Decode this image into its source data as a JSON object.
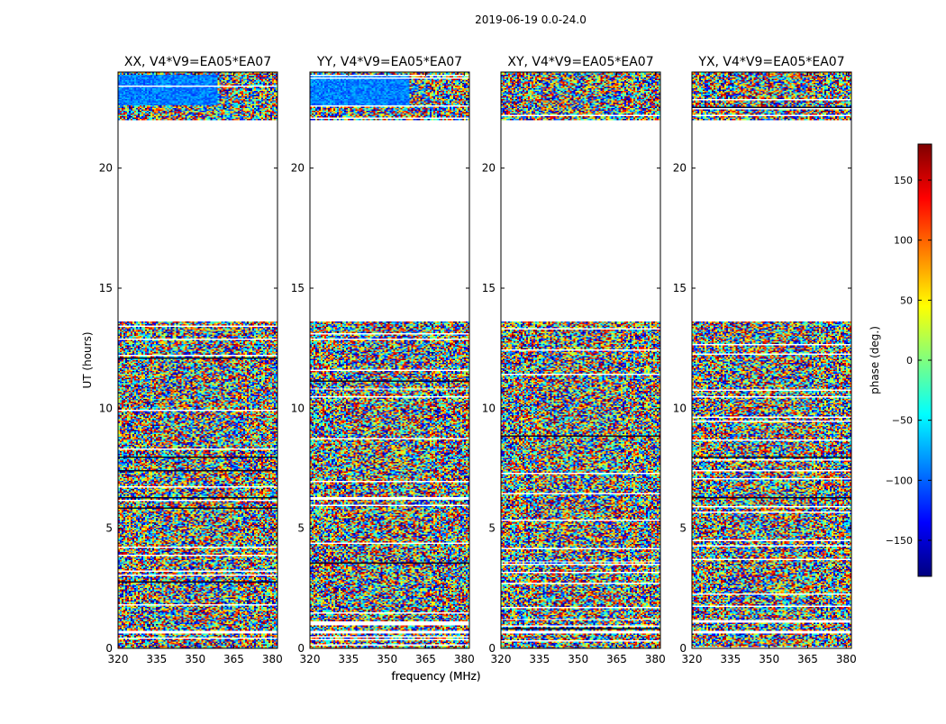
{
  "suptitle": "2019-06-19 0.0-24.0",
  "chart_data": [
    {
      "type": "heatmap",
      "title": "XX, V4*V9=EA05*EA07",
      "xlabel": "frequency (MHz)",
      "ylabel": "UT (hours)",
      "xlim": [
        320,
        382
      ],
      "ylim": [
        0,
        24
      ],
      "xticks": [
        "320",
        "335",
        "350",
        "365",
        "380"
      ],
      "yticks": [
        "0",
        "5",
        "10",
        "15",
        "20"
      ],
      "data_intervals_ut_hours": [
        [
          0,
          0.6
        ],
        [
          0.7,
          13.6
        ],
        [
          22.0,
          24.0
        ]
      ]
    },
    {
      "type": "heatmap",
      "title": "YY, V4*V9=EA05*EA07",
      "xlabel": "frequency (MHz)",
      "ylabel": "",
      "xlim": [
        320,
        382
      ],
      "ylim": [
        0,
        24
      ],
      "xticks": [
        "320",
        "335",
        "350",
        "365",
        "380"
      ],
      "yticks": [
        "0",
        "5",
        "10",
        "15",
        "20"
      ],
      "data_intervals_ut_hours": [
        [
          0,
          0.6
        ],
        [
          0.7,
          13.6
        ],
        [
          22.0,
          24.0
        ]
      ]
    },
    {
      "type": "heatmap",
      "title": "XY, V4*V9=EA05*EA07",
      "xlabel": "",
      "ylabel": "",
      "xlim": [
        320,
        382
      ],
      "ylim": [
        0,
        24
      ],
      "xticks": [
        "320",
        "335",
        "350",
        "365",
        "380"
      ],
      "yticks": [
        "0",
        "5",
        "10",
        "15",
        "20"
      ],
      "data_intervals_ut_hours": [
        [
          0,
          0.6
        ],
        [
          0.7,
          13.6
        ],
        [
          22.0,
          24.0
        ]
      ]
    },
    {
      "type": "heatmap",
      "title": "YX, V4*V9=EA05*EA07",
      "xlabel": "",
      "ylabel": "",
      "xlim": [
        320,
        382
      ],
      "ylim": [
        0,
        24
      ],
      "xticks": [
        "320",
        "335",
        "350",
        "365",
        "380"
      ],
      "yticks": [
        "0",
        "5",
        "10",
        "15",
        "20"
      ],
      "data_intervals_ut_hours": [
        [
          0,
          0.6
        ],
        [
          0.7,
          13.6
        ],
        [
          22.0,
          24.0
        ]
      ]
    }
  ],
  "colorbar": {
    "label": "phase (deg.)",
    "range": [
      -180,
      180
    ],
    "ticks": [
      "150",
      "100",
      "50",
      "0",
      "−50",
      "−100",
      "−150"
    ],
    "tick_values": [
      150,
      100,
      50,
      0,
      -50,
      -100,
      -150
    ],
    "colormap": "jet",
    "colors": [
      "#00007f",
      "#0000ff",
      "#007fff",
      "#00ffff",
      "#7fff7f",
      "#ffff00",
      "#ff7f00",
      "#ff0000",
      "#7f0000"
    ]
  }
}
